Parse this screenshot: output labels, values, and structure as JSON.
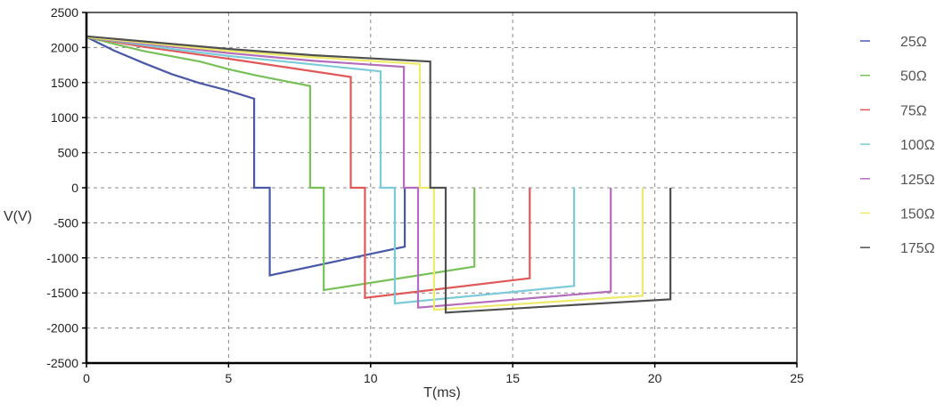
{
  "chart_data": {
    "type": "line",
    "title": "",
    "xlabel": "T(ms)",
    "ylabel": "V(V)",
    "xlim": [
      0,
      25
    ],
    "ylim": [
      -2500,
      2500
    ],
    "xticks": [
      0,
      5,
      10,
      15,
      20,
      25
    ],
    "yticks": [
      2500,
      2000,
      1500,
      1000,
      500,
      0,
      -500,
      -1000,
      -1500,
      -2000,
      -2500
    ],
    "grid": true,
    "legend_position": "right",
    "series": [
      {
        "name": "25Ω",
        "color": "#4a58a8",
        "points": [
          [
            0,
            2150
          ],
          [
            1,
            1950
          ],
          [
            2,
            1780
          ],
          [
            3,
            1620
          ],
          [
            4,
            1490
          ],
          [
            5,
            1385
          ],
          [
            5.9,
            1270
          ],
          [
            5.9,
            0
          ],
          [
            6.45,
            0
          ],
          [
            6.45,
            -1250
          ],
          [
            11.2,
            -840
          ],
          [
            11.2,
            0
          ]
        ]
      },
      {
        "name": "50Ω",
        "color": "#78c058",
        "points": [
          [
            0,
            2150
          ],
          [
            2,
            1950
          ],
          [
            4,
            1800
          ],
          [
            5,
            1690
          ],
          [
            6,
            1600
          ],
          [
            7.87,
            1450
          ],
          [
            7.87,
            0
          ],
          [
            8.35,
            0
          ],
          [
            8.35,
            -1460
          ],
          [
            13.65,
            -1125
          ],
          [
            13.65,
            0
          ]
        ]
      },
      {
        "name": "75Ω",
        "color": "#e05858",
        "points": [
          [
            0,
            2150
          ],
          [
            2,
            2010
          ],
          [
            5,
            1840
          ],
          [
            7,
            1720
          ],
          [
            9.3,
            1580
          ],
          [
            9.3,
            0
          ],
          [
            9.8,
            0
          ],
          [
            9.8,
            -1570
          ],
          [
            15.6,
            -1290
          ],
          [
            15.6,
            0
          ]
        ]
      },
      {
        "name": "100Ω",
        "color": "#7ccbd8",
        "points": [
          [
            0,
            2150
          ],
          [
            3,
            1980
          ],
          [
            5,
            1880
          ],
          [
            7,
            1800
          ],
          [
            10.35,
            1660
          ],
          [
            10.35,
            0
          ],
          [
            10.85,
            0
          ],
          [
            10.85,
            -1650
          ],
          [
            17.16,
            -1400
          ],
          [
            17.16,
            0
          ]
        ]
      },
      {
        "name": "125Ω",
        "color": "#b46cbc",
        "points": [
          [
            0,
            2150
          ],
          [
            5,
            1920
          ],
          [
            8,
            1810
          ],
          [
            11.17,
            1725
          ],
          [
            11.17,
            0
          ],
          [
            11.67,
            0
          ],
          [
            11.67,
            -1710
          ],
          [
            18.45,
            -1480
          ],
          [
            18.45,
            0
          ]
        ]
      },
      {
        "name": "150Ω",
        "color": "#eeea6a",
        "points": [
          [
            0,
            2150
          ],
          [
            5,
            1950
          ],
          [
            8,
            1860
          ],
          [
            11.73,
            1765
          ],
          [
            11.73,
            0
          ],
          [
            12.23,
            0
          ],
          [
            12.23,
            -1740
          ],
          [
            19.57,
            -1540
          ],
          [
            19.57,
            0
          ]
        ]
      },
      {
        "name": "175Ω",
        "color": "#505050",
        "points": [
          [
            0,
            2160
          ],
          [
            5,
            1980
          ],
          [
            8,
            1890
          ],
          [
            12.1,
            1800
          ],
          [
            12.1,
            0
          ],
          [
            12.64,
            0
          ],
          [
            12.64,
            -1780
          ],
          [
            20.55,
            -1590
          ],
          [
            20.55,
            0
          ]
        ]
      }
    ]
  },
  "axis": {
    "x_title": "T(ms)",
    "y_title": "V(V)"
  },
  "legend": {
    "items": [
      {
        "label": "25Ω",
        "color": "#4a58a8"
      },
      {
        "label": "50Ω",
        "color": "#78c058"
      },
      {
        "label": "75Ω",
        "color": "#e05858"
      },
      {
        "label": "100Ω",
        "color": "#7ccbd8"
      },
      {
        "label": "125Ω",
        "color": "#b46cbc"
      },
      {
        "label": "150Ω",
        "color": "#eeea6a"
      },
      {
        "label": "175Ω",
        "color": "#505050"
      }
    ]
  }
}
